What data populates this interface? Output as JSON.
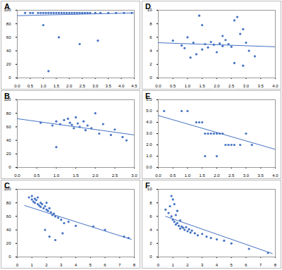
{
  "chart_data": [
    {
      "type": "scatter",
      "title": "A",
      "color": "#4472c4",
      "x": [
        0.3,
        0.5,
        0.6,
        0.8,
        0.9,
        1.0,
        1.1,
        1.2,
        1.3,
        1.4,
        1.5,
        1.6,
        1.7,
        1.8,
        1.9,
        2.0,
        2.1,
        2.2,
        2.3,
        2.4,
        2.5,
        2.6,
        2.7,
        2.8,
        3.0,
        3.2,
        3.5,
        3.8,
        4.1,
        4.4,
        1.2,
        1.6,
        2.4,
        3.1,
        1.0
      ],
      "values": [
        96,
        96,
        96,
        96,
        96,
        96,
        96,
        96,
        96,
        96,
        96,
        96,
        96,
        96,
        96,
        96,
        96,
        96,
        96,
        96,
        96,
        96,
        96,
        96,
        96,
        96,
        96,
        96,
        96,
        96,
        10,
        60,
        50,
        55,
        78
      ],
      "trend": {
        "x": [
          0,
          4.5
        ],
        "values": [
          92,
          96
        ]
      },
      "xlim": [
        0,
        4.5
      ],
      "xticks": [
        0,
        0.5,
        1,
        1.5,
        2,
        2.5,
        3,
        3.5,
        4,
        4.5
      ],
      "ylim": [
        0,
        100
      ],
      "yticks": [
        0,
        20,
        40,
        60,
        80,
        100
      ]
    },
    {
      "type": "scatter",
      "title": "D",
      "color": "#4472c4",
      "x": [
        0.5,
        0.8,
        1.0,
        1.2,
        1.4,
        1.5,
        1.6,
        1.7,
        1.8,
        1.9,
        2.0,
        2.1,
        2.2,
        2.3,
        2.4,
        2.5,
        2.6,
        2.7,
        2.8,
        2.9,
        3.0,
        3.1,
        1.1,
        1.3,
        2.6,
        2.9,
        1.5,
        2.2,
        3.3,
        0.9
      ],
      "values": [
        5.5,
        4.8,
        6.0,
        5.2,
        9.2,
        7.8,
        5.0,
        4.5,
        5.3,
        4.9,
        3.8,
        5.1,
        4.7,
        5.6,
        5.0,
        4.6,
        8.5,
        9.0,
        6.5,
        7.2,
        5.2,
        4.0,
        3.0,
        3.5,
        2.2,
        1.8,
        4.2,
        6.2,
        3.2,
        4.4
      ],
      "trend": {
        "x": [
          0,
          4
        ],
        "values": [
          5.2,
          4.6
        ]
      },
      "xlim": [
        0,
        4
      ],
      "xticks": [
        0,
        0.5,
        1,
        1.5,
        2,
        2.5,
        3,
        3.5,
        4
      ],
      "ylim": [
        0,
        10
      ],
      "yticks": [
        0,
        2,
        4,
        6,
        8,
        10
      ]
    },
    {
      "type": "scatter",
      "title": "B",
      "color": "#4472c4",
      "x": [
        0.6,
        0.9,
        1.0,
        1.1,
        1.2,
        1.3,
        1.35,
        1.4,
        1.5,
        1.55,
        1.6,
        1.7,
        1.75,
        1.8,
        1.9,
        2.0,
        2.1,
        2.2,
        2.4,
        2.5,
        2.7,
        2.8,
        1.0,
        1.45
      ],
      "values": [
        66,
        62,
        68,
        64,
        70,
        72,
        66,
        63,
        74,
        65,
        60,
        68,
        55,
        62,
        58,
        80,
        50,
        64,
        48,
        56,
        45,
        40,
        30,
        58
      ],
      "trend": {
        "x": [
          0,
          3
        ],
        "values": [
          72,
          48
        ]
      },
      "xlim": [
        0,
        3
      ],
      "xticks": [
        0,
        0.5,
        1,
        1.5,
        2,
        2.5,
        3
      ],
      "ylim": [
        0,
        100
      ],
      "yticks": [
        0,
        20,
        40,
        60,
        80,
        100
      ]
    },
    {
      "type": "scatter",
      "title": "E",
      "color": "#4472c4",
      "x": [
        0.2,
        0.8,
        1.0,
        1.3,
        1.4,
        1.5,
        1.6,
        1.7,
        1.8,
        1.9,
        2.0,
        2.1,
        2.2,
        2.4,
        2.5,
        2.6,
        2.8,
        3.0,
        3.2,
        1.6,
        2.0,
        2.3
      ],
      "values": [
        5,
        5,
        5,
        4,
        4,
        4,
        3,
        3,
        3,
        3,
        3,
        3,
        3,
        2,
        2,
        2,
        2,
        3,
        2,
        1,
        1,
        2
      ],
      "trend": {
        "x": [
          0,
          4
        ],
        "values": [
          4.6,
          1.6
        ]
      },
      "xlim": [
        0,
        4
      ],
      "xticks": [
        0,
        0.5,
        1,
        1.5,
        2,
        2.5,
        3,
        3.5,
        4
      ],
      "ylim": [
        0,
        6
      ],
      "yticks": [
        0,
        1,
        2,
        3,
        4,
        5,
        6
      ]
    },
    {
      "type": "scatter",
      "title": "C",
      "color": "#4472c4",
      "x": [
        0.8,
        1.0,
        1.0,
        1.1,
        1.2,
        1.2,
        1.3,
        1.4,
        1.4,
        1.5,
        1.6,
        1.6,
        1.7,
        1.8,
        1.9,
        2.0,
        2.0,
        2.1,
        2.2,
        2.3,
        2.4,
        2.5,
        2.6,
        2.8,
        3.0,
        3.2,
        3.5,
        4.0,
        2.2,
        2.6,
        1.9,
        3.1,
        5.2,
        6.0,
        7.3,
        7.6
      ],
      "values": [
        88,
        85,
        90,
        82,
        86,
        80,
        84,
        78,
        88,
        76,
        80,
        74,
        78,
        72,
        75,
        70,
        80,
        68,
        72,
        66,
        62,
        64,
        60,
        58,
        55,
        50,
        52,
        46,
        30,
        25,
        40,
        35,
        45,
        40,
        30,
        28
      ],
      "trend": {
        "x": [
          0.5,
          7.8
        ],
        "values": [
          76,
          26
        ]
      },
      "xlim": [
        0,
        8
      ],
      "xticks": [
        0,
        1,
        2,
        3,
        4,
        5,
        6,
        7,
        8
      ],
      "ylim": [
        0,
        100
      ],
      "yticks": [
        0,
        20,
        40,
        60,
        80,
        100
      ]
    },
    {
      "type": "scatter",
      "title": "F",
      "color": "#4472c4",
      "x": [
        0.5,
        0.7,
        0.8,
        0.9,
        1.0,
        1.0,
        1.1,
        1.2,
        1.2,
        1.3,
        1.4,
        1.5,
        1.5,
        1.6,
        1.7,
        1.8,
        1.9,
        2.0,
        2.1,
        2.2,
        2.3,
        2.5,
        2.7,
        3.0,
        3.3,
        3.6,
        4.0,
        4.5,
        5.0,
        1.1,
        1.3,
        0.9,
        6.2,
        7.5
      ],
      "values": [
        7.0,
        6.5,
        7.5,
        6.0,
        5.5,
        8.5,
        5.2,
        6.2,
        4.8,
        5.0,
        4.6,
        5.4,
        4.2,
        4.5,
        4.3,
        4.0,
        4.4,
        3.8,
        4.1,
        3.6,
        3.9,
        3.5,
        3.2,
        3.4,
        3.0,
        2.8,
        2.6,
        2.4,
        2.0,
        7.8,
        6.8,
        9.0,
        1.2,
        0.6
      ],
      "trend": {
        "x": [
          0.5,
          7.8
        ],
        "values": [
          6.0,
          0.5
        ]
      },
      "xlim": [
        0,
        8
      ],
      "xticks": [
        0,
        1,
        2,
        3,
        4,
        5,
        6,
        7,
        8
      ],
      "ylim": [
        0,
        10
      ],
      "yticks": [
        0,
        2,
        4,
        6,
        8,
        10
      ]
    }
  ]
}
